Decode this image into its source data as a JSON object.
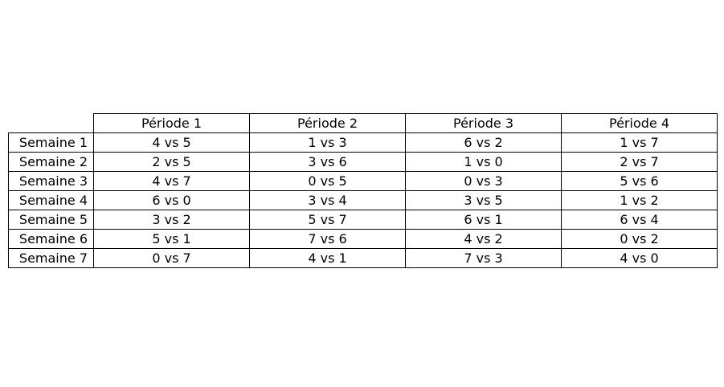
{
  "chart_data": {
    "type": "table",
    "columns": [
      "Période 1",
      "Période 2",
      "Période 3",
      "Période 4"
    ],
    "rows": [
      {
        "label": "Semaine 1",
        "cells": [
          "4 vs 5",
          "1 vs 3",
          "6 vs 2",
          "1 vs 7"
        ]
      },
      {
        "label": "Semaine 2",
        "cells": [
          "2 vs 5",
          "3 vs 6",
          "1 vs 0",
          "2 vs 7"
        ]
      },
      {
        "label": "Semaine 3",
        "cells": [
          "4 vs 7",
          "0 vs 5",
          "0 vs 3",
          "5 vs 6"
        ]
      },
      {
        "label": "Semaine 4",
        "cells": [
          "6 vs 0",
          "3 vs 4",
          "3 vs 5",
          "1 vs 2"
        ]
      },
      {
        "label": "Semaine 5",
        "cells": [
          "3 vs 2",
          "5 vs 7",
          "6 vs 1",
          "6 vs 4"
        ]
      },
      {
        "label": "Semaine 6",
        "cells": [
          "5 vs 1",
          "7 vs 6",
          "4 vs 2",
          "0 vs 2"
        ]
      },
      {
        "label": "Semaine 7",
        "cells": [
          "0 vs 7",
          "4 vs 1",
          "7 vs 3",
          "4 vs 0"
        ]
      }
    ]
  }
}
